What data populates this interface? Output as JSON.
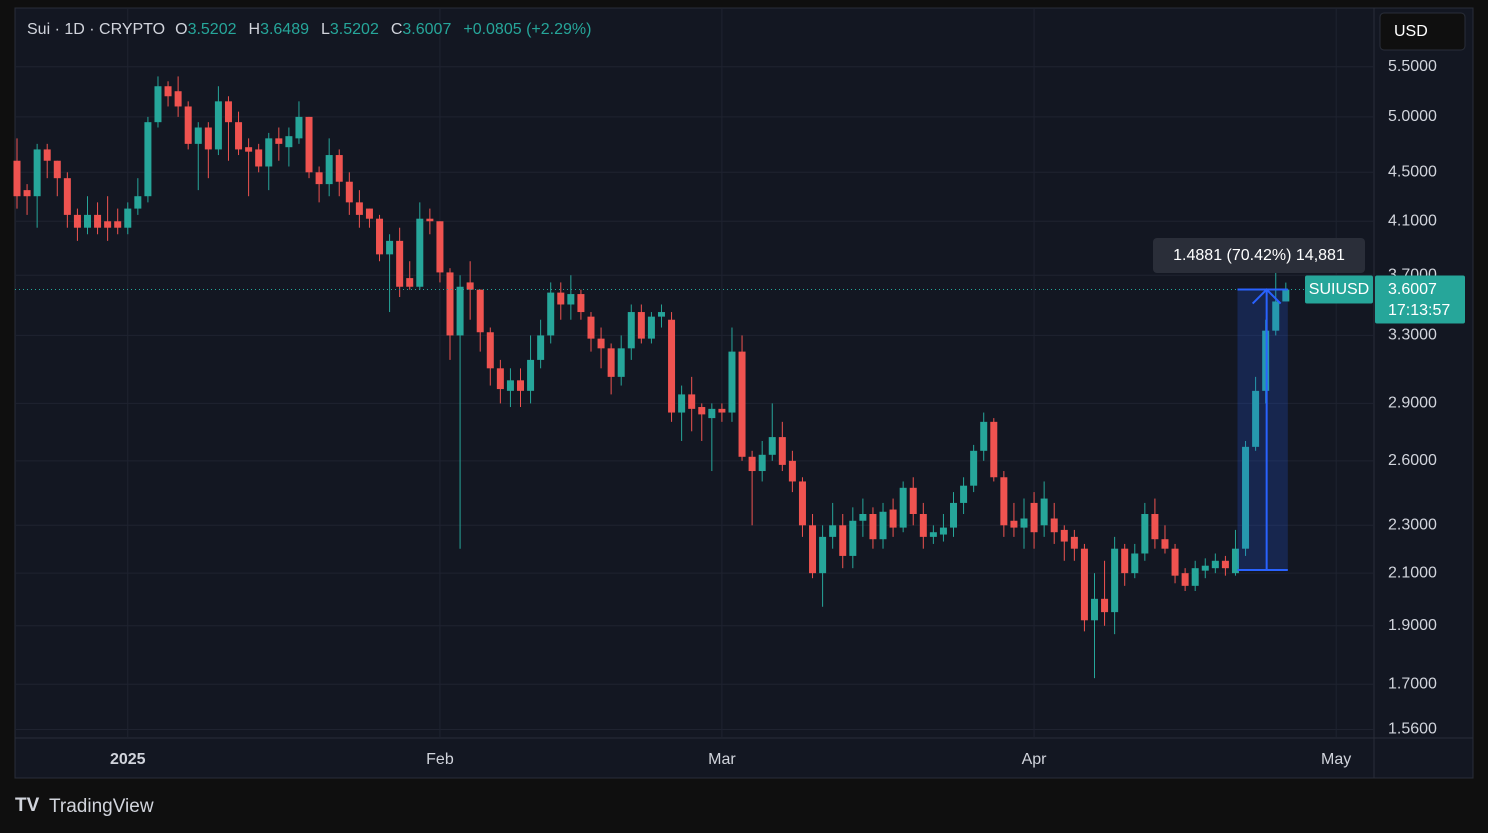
{
  "chart_data": {
    "type": "candlestick",
    "header": {
      "symbol": "Sui · 1D · CRYPTO",
      "ohlc": [
        {
          "key": "O",
          "value": "3.5202"
        },
        {
          "key": "H",
          "value": "3.6489"
        },
        {
          "key": "L",
          "value": "3.5202"
        },
        {
          "key": "C",
          "value": "3.6007"
        }
      ],
      "change": "+0.0805 (+2.29%)"
    },
    "currency": "USD",
    "price_label": {
      "symbol": "SUIUSD",
      "price": "3.6007",
      "countdown": "17:13:57"
    },
    "measure": {
      "change": 1.4881,
      "label": "1.4881 (70.42%) 14,881"
    },
    "brand": "TradingView",
    "up_color": "#26a69a",
    "down_color": "#ef5350",
    "log_scale": true,
    "grid": true,
    "categories": [
      null,
      null,
      null,
      null,
      null,
      null,
      null,
      null,
      null,
      null,
      null,
      "2025",
      null,
      null,
      null,
      null,
      null,
      null,
      null,
      null,
      null,
      null,
      null,
      null,
      null,
      null,
      null,
      null,
      null,
      null,
      null,
      null,
      null,
      null,
      null,
      null,
      null,
      null,
      null,
      null,
      null,
      null,
      "Feb",
      null,
      null,
      null,
      null,
      null,
      null,
      null,
      null,
      null,
      null,
      null,
      null,
      null,
      null,
      null,
      null,
      null,
      null,
      null,
      null,
      null,
      null,
      null,
      null,
      null,
      null,
      null,
      "Mar",
      null,
      null,
      null,
      null,
      null,
      null,
      null,
      null,
      null,
      null,
      null,
      null,
      null,
      null,
      null,
      null,
      null,
      null,
      null,
      null,
      null,
      null,
      null,
      null,
      null,
      null,
      null,
      null,
      null,
      null,
      "Apr",
      null,
      null,
      null,
      null,
      null,
      null,
      null,
      null,
      null,
      null,
      null,
      null,
      null,
      null,
      null,
      null,
      null,
      null,
      null,
      null,
      null,
      null,
      null,
      null,
      null,
      null,
      null,
      null,
      null,
      "May"
    ],
    "open": [
      4.6,
      4.35,
      4.3,
      4.7,
      4.6,
      4.45,
      4.15,
      4.05,
      4.15,
      4.1,
      4.1,
      4.05,
      4.2,
      4.3,
      4.95,
      5.3,
      5.25,
      5.1,
      4.75,
      4.9,
      4.7,
      5.15,
      4.95,
      4.72,
      4.7,
      4.55,
      4.8,
      4.72,
      4.8,
      5.0,
      4.5,
      4.4,
      4.65,
      4.42,
      4.25,
      4.2,
      4.12,
      3.85,
      3.95,
      3.68,
      3.62,
      4.12,
      4.1,
      3.72,
      3.3,
      3.65,
      3.6,
      3.32,
      3.1,
      2.97,
      3.03,
      2.97,
      3.15,
      3.3,
      3.58,
      3.5,
      3.57,
      3.42,
      3.28,
      3.22,
      3.05,
      3.22,
      3.45,
      3.28,
      3.42,
      3.4,
      2.85,
      2.95,
      2.88,
      2.82,
      2.87,
      2.85,
      3.2,
      2.62,
      2.55,
      2.63,
      2.72,
      2.6,
      2.5,
      2.3,
      2.1,
      2.25,
      2.3,
      2.17,
      2.32,
      2.35,
      2.24,
      2.37,
      2.29,
      2.47,
      2.35,
      2.25,
      2.26,
      2.29,
      2.4,
      2.48,
      2.65,
      2.8,
      2.52,
      2.32,
      2.29,
      2.4,
      2.3,
      2.33,
      2.28,
      2.25,
      2.2,
      1.92,
      2.0,
      1.95,
      2.2,
      2.1,
      2.18,
      2.35,
      2.24,
      2.2,
      2.1,
      2.05,
      2.11,
      2.12,
      2.15,
      2.1,
      2.2,
      2.67,
      2.97,
      3.33,
      3.5202,
      null,
      null,
      null,
      null,
      null
    ],
    "high": [
      4.8,
      4.4,
      4.75,
      4.75,
      4.6,
      4.5,
      4.2,
      4.3,
      4.25,
      4.3,
      4.2,
      4.25,
      4.45,
      5.0,
      5.4,
      5.35,
      5.4,
      5.15,
      4.95,
      4.95,
      5.3,
      5.2,
      5.05,
      4.8,
      4.75,
      4.85,
      4.9,
      4.9,
      5.15,
      5.0,
      4.55,
      4.8,
      4.7,
      4.5,
      4.35,
      4.2,
      4.15,
      4.0,
      4.05,
      3.8,
      4.25,
      4.2,
      4.1,
      3.75,
      3.7,
      3.8,
      3.6,
      3.35,
      3.15,
      3.1,
      3.1,
      3.3,
      3.4,
      3.65,
      3.65,
      3.7,
      3.6,
      3.45,
      3.35,
      3.25,
      3.3,
      3.5,
      3.5,
      3.45,
      3.5,
      3.45,
      3.0,
      3.05,
      2.9,
      2.9,
      2.9,
      3.35,
      3.3,
      2.65,
      2.7,
      2.9,
      2.8,
      2.65,
      2.52,
      2.35,
      2.3,
      2.4,
      2.35,
      2.38,
      2.42,
      2.38,
      2.4,
      2.42,
      2.5,
      2.52,
      2.4,
      2.3,
      2.35,
      2.45,
      2.52,
      2.68,
      2.85,
      2.82,
      2.55,
      2.4,
      2.42,
      2.45,
      2.5,
      2.4,
      2.3,
      2.28,
      2.22,
      2.1,
      2.15,
      2.25,
      2.22,
      2.22,
      2.4,
      2.42,
      2.3,
      2.22,
      2.12,
      2.15,
      2.16,
      2.18,
      2.17,
      2.28,
      2.7,
      3.05,
      3.4,
      3.75,
      3.6489,
      null,
      null,
      null,
      null,
      null
    ],
    "low": [
      4.2,
      4.15,
      4.05,
      4.45,
      4.3,
      4.05,
      3.95,
      4.0,
      4.0,
      3.95,
      4.0,
      4.0,
      4.15,
      4.25,
      4.9,
      5.1,
      5.0,
      4.7,
      4.35,
      4.45,
      4.65,
      4.6,
      4.65,
      4.3,
      4.5,
      4.35,
      4.6,
      4.55,
      4.75,
      4.45,
      4.25,
      4.3,
      4.3,
      4.15,
      4.05,
      4.05,
      3.8,
      3.45,
      3.55,
      3.6,
      3.6,
      4.0,
      3.65,
      3.15,
      2.2,
      3.4,
      3.2,
      3.0,
      2.9,
      2.88,
      2.88,
      2.9,
      3.1,
      3.25,
      3.4,
      3.4,
      3.4,
      3.2,
      3.1,
      2.95,
      3.0,
      3.15,
      3.25,
      3.25,
      3.35,
      2.8,
      2.7,
      2.75,
      2.7,
      2.55,
      2.8,
      2.8,
      2.6,
      2.3,
      2.5,
      2.6,
      2.55,
      2.45,
      2.25,
      2.08,
      1.97,
      2.2,
      2.12,
      2.12,
      2.25,
      2.2,
      2.2,
      2.25,
      2.27,
      2.3,
      2.2,
      2.22,
      2.23,
      2.25,
      2.35,
      2.45,
      2.6,
      2.5,
      2.25,
      2.25,
      2.2,
      2.2,
      2.25,
      2.22,
      2.15,
      2.15,
      1.88,
      1.72,
      1.9,
      1.87,
      2.05,
      2.08,
      2.15,
      2.2,
      2.18,
      2.06,
      2.03,
      2.03,
      2.08,
      2.1,
      2.09,
      2.09,
      2.17,
      2.65,
      2.9,
      3.3,
      3.5202,
      null,
      null,
      null,
      null,
      null
    ],
    "close": [
      4.3,
      4.3,
      4.7,
      4.6,
      4.45,
      4.15,
      4.05,
      4.15,
      4.05,
      4.05,
      4.05,
      4.2,
      4.3,
      4.95,
      5.3,
      5.2,
      5.1,
      4.75,
      4.9,
      4.7,
      5.15,
      4.95,
      4.7,
      4.68,
      4.55,
      4.8,
      4.75,
      4.82,
      5.0,
      4.5,
      4.4,
      4.65,
      4.42,
      4.25,
      4.15,
      4.12,
      3.85,
      3.95,
      3.62,
      3.62,
      4.12,
      4.1,
      3.72,
      3.3,
      3.62,
      3.6,
      3.32,
      3.1,
      2.98,
      3.03,
      2.97,
      3.15,
      3.3,
      3.58,
      3.5,
      3.57,
      3.45,
      3.28,
      3.22,
      3.05,
      3.22,
      3.45,
      3.28,
      3.42,
      3.45,
      2.85,
      2.95,
      2.87,
      2.84,
      2.87,
      2.85,
      3.2,
      2.62,
      2.55,
      2.63,
      2.72,
      2.58,
      2.5,
      2.3,
      2.1,
      2.25,
      2.3,
      2.17,
      2.32,
      2.35,
      2.24,
      2.36,
      2.29,
      2.47,
      2.35,
      2.25,
      2.27,
      2.29,
      2.4,
      2.48,
      2.65,
      2.8,
      2.52,
      2.3,
      2.29,
      2.33,
      2.27,
      2.42,
      2.27,
      2.23,
      2.2,
      1.92,
      2.0,
      1.95,
      2.2,
      2.1,
      2.18,
      2.35,
      2.24,
      2.2,
      2.09,
      2.05,
      2.12,
      2.13,
      2.15,
      2.12,
      2.2,
      2.67,
      2.97,
      3.33,
      3.52,
      3.6007,
      null,
      null,
      null,
      null,
      null
    ],
    "ylim": [
      1.535,
      6.15
    ],
    "yticks": [
      {
        "value": 1.56,
        "label": "1.5600"
      },
      {
        "value": 1.7,
        "label": "1.7000"
      },
      {
        "value": 1.9,
        "label": "1.9000"
      },
      {
        "value": 2.1,
        "label": "2.1000"
      },
      {
        "value": 2.3,
        "label": "2.3000"
      },
      {
        "value": 2.6,
        "label": "2.6000"
      },
      {
        "value": 2.9,
        "label": "2.9000"
      },
      {
        "value": 3.3,
        "label": "3.3000"
      },
      {
        "value": 3.7,
        "label": "3.7000"
      },
      {
        "value": 4.1,
        "label": "4.1000"
      },
      {
        "value": 4.5,
        "label": "4.5000"
      },
      {
        "value": 5,
        "label": "5.0000"
      },
      {
        "value": 5.5,
        "label": "5.5000"
      }
    ]
  }
}
